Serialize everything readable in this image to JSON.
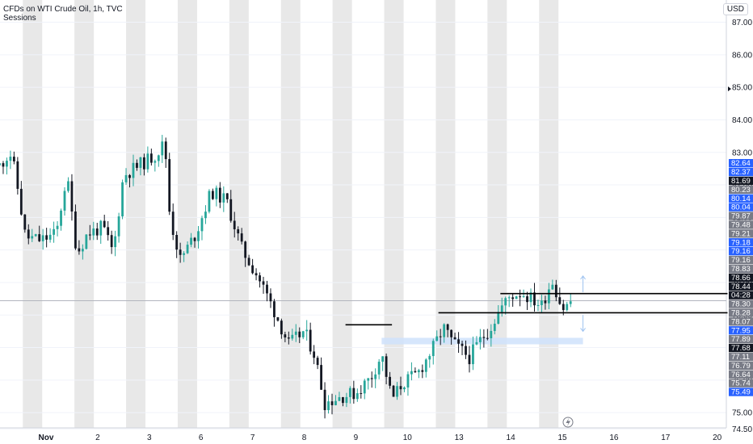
{
  "header": {
    "title": "CFDs on WTI Crude Oil, 1h, TVC",
    "subtitle": "Sessions"
  },
  "currency": "USD",
  "colors": {
    "up": "#26a69a",
    "down": "#131722",
    "session_band": "#e8e8e8",
    "zone": "#cfe2fb",
    "arrow": "#9fc3f0"
  },
  "chart_data": {
    "type": "candlestick",
    "title": "CFDs on WTI Crude Oil, 1h, TVC",
    "ylim": [
      74.5,
      87.5
    ],
    "y_ticks": [
      74.5,
      75.0,
      76.0,
      77.0,
      78.0,
      79.0,
      80.0,
      81.0,
      82.0,
      83.0,
      84.0,
      85.0,
      86.0,
      87.0
    ],
    "x_ticks": [
      {
        "label": "Nov",
        "x": 0
      },
      {
        "label": "2",
        "x": 1
      },
      {
        "label": "3",
        "x": 2
      },
      {
        "label": "6",
        "x": 3
      },
      {
        "label": "7",
        "x": 4
      },
      {
        "label": "8",
        "x": 5
      },
      {
        "label": "9",
        "x": 6
      },
      {
        "label": "10",
        "x": 7
      },
      {
        "label": "13",
        "x": 8
      },
      {
        "label": "14",
        "x": 9
      },
      {
        "label": "15",
        "x": 10
      },
      {
        "label": "16",
        "x": 11
      },
      {
        "label": "17",
        "x": 12
      },
      {
        "label": "20",
        "x": 13
      }
    ],
    "path": [
      [
        -0.9,
        82.6
      ],
      [
        -0.7,
        83.0
      ],
      [
        -0.6,
        82.4
      ],
      [
        -0.4,
        80.4
      ],
      [
        -0.1,
        80.3
      ],
      [
        0.2,
        80.5
      ],
      [
        0.4,
        82.3
      ],
      [
        0.6,
        79.9
      ],
      [
        0.8,
        80.5
      ],
      [
        1.1,
        80.7
      ],
      [
        1.3,
        79.9
      ],
      [
        1.5,
        82.3
      ],
      [
        1.8,
        82.6
      ],
      [
        2.1,
        82.9
      ],
      [
        2.3,
        83.3
      ],
      [
        2.4,
        81.0
      ],
      [
        2.6,
        79.7
      ],
      [
        2.9,
        80.5
      ],
      [
        3.2,
        81.8
      ],
      [
        3.5,
        81.5
      ],
      [
        3.8,
        80.0
      ],
      [
        4.1,
        79.2
      ],
      [
        4.4,
        78.2
      ],
      [
        4.7,
        77.1
      ],
      [
        5.0,
        77.5
      ],
      [
        5.2,
        76.8
      ],
      [
        5.4,
        75.3
      ],
      [
        5.7,
        75.5
      ],
      [
        6.0,
        75.6
      ],
      [
        6.3,
        76.1
      ],
      [
        6.5,
        76.8
      ],
      [
        6.7,
        75.4
      ],
      [
        6.9,
        75.9
      ],
      [
        7.2,
        76.2
      ],
      [
        7.5,
        77.0
      ],
      [
        7.7,
        77.6
      ],
      [
        7.9,
        77.1
      ],
      [
        8.2,
        76.7
      ],
      [
        8.4,
        77.2
      ],
      [
        8.6,
        77.6
      ],
      [
        8.8,
        78.2
      ],
      [
        9.0,
        78.6
      ],
      [
        9.2,
        78.7
      ],
      [
        9.4,
        78.5
      ],
      [
        9.6,
        78.3
      ],
      [
        9.8,
        79.1
      ],
      [
        10.0,
        78.2
      ],
      [
        10.1,
        78.3
      ],
      [
        10.2,
        78.5
      ]
    ],
    "sessions": [
      -0.45,
      0.55,
      1.55,
      2.55,
      3.55,
      4.55,
      5.55,
      6.55,
      7.55,
      8.55,
      9.55
    ],
    "hlines": [
      {
        "y": 78.66,
        "x0": 8.8,
        "x1": 13.2
      },
      {
        "y": 78.07,
        "x0": 7.6,
        "x1": 13.2
      }
    ],
    "segments": [
      {
        "y": 77.7,
        "x0": 5.8,
        "x1": 6.7
      }
    ],
    "zone": {
      "y0": 77.3,
      "y1": 77.1,
      "x0": 6.5,
      "x1": 10.4
    },
    "arrows": [
      {
        "x": 10.4,
        "from": 78.7,
        "to": 79.2
      },
      {
        "x": 10.4,
        "from": 78.0,
        "to": 77.5
      }
    ],
    "crosshair_y": 78.44,
    "price_labels": [
      {
        "value": "82.64",
        "bg": "#2962ff"
      },
      {
        "value": "82.37",
        "bg": "#2962ff"
      },
      {
        "value": "81.69",
        "bg": "#131722"
      },
      {
        "value": "80.23",
        "bg": "#787b86"
      },
      {
        "value": "80.14",
        "bg": "#2962ff"
      },
      {
        "value": "80.04",
        "bg": "#2962ff"
      },
      {
        "value": "79.87",
        "bg": "#787b86"
      },
      {
        "value": "79.48",
        "bg": "#787b86"
      },
      {
        "value": "79.21",
        "bg": "#787b86"
      },
      {
        "value": "79.18",
        "bg": "#2962ff"
      },
      {
        "value": "79.16",
        "bg": "#2962ff"
      },
      {
        "value": "79.16",
        "bg": "#787b86"
      },
      {
        "value": "78.83",
        "bg": "#787b86"
      },
      {
        "value": "78.66",
        "bg": "#131722"
      },
      {
        "value": "78.44",
        "bg": "#131722"
      },
      {
        "value": "04:28",
        "bg": "#131722"
      },
      {
        "value": "78.30",
        "bg": "#787b86"
      },
      {
        "value": "78.28",
        "bg": "#787b86"
      },
      {
        "value": "78.07",
        "bg": "#787b86"
      },
      {
        "value": "77.95",
        "bg": "#2962ff"
      },
      {
        "value": "77.89",
        "bg": "#787b86"
      },
      {
        "value": "77.68",
        "bg": "#131722"
      },
      {
        "value": "77.11",
        "bg": "#787b86"
      },
      {
        "value": "76.79",
        "bg": "#787b86"
      },
      {
        "value": "76.64",
        "bg": "#787b86"
      },
      {
        "value": "75.74",
        "bg": "#787b86"
      },
      {
        "value": "75.49",
        "bg": "#2962ff"
      }
    ]
  }
}
